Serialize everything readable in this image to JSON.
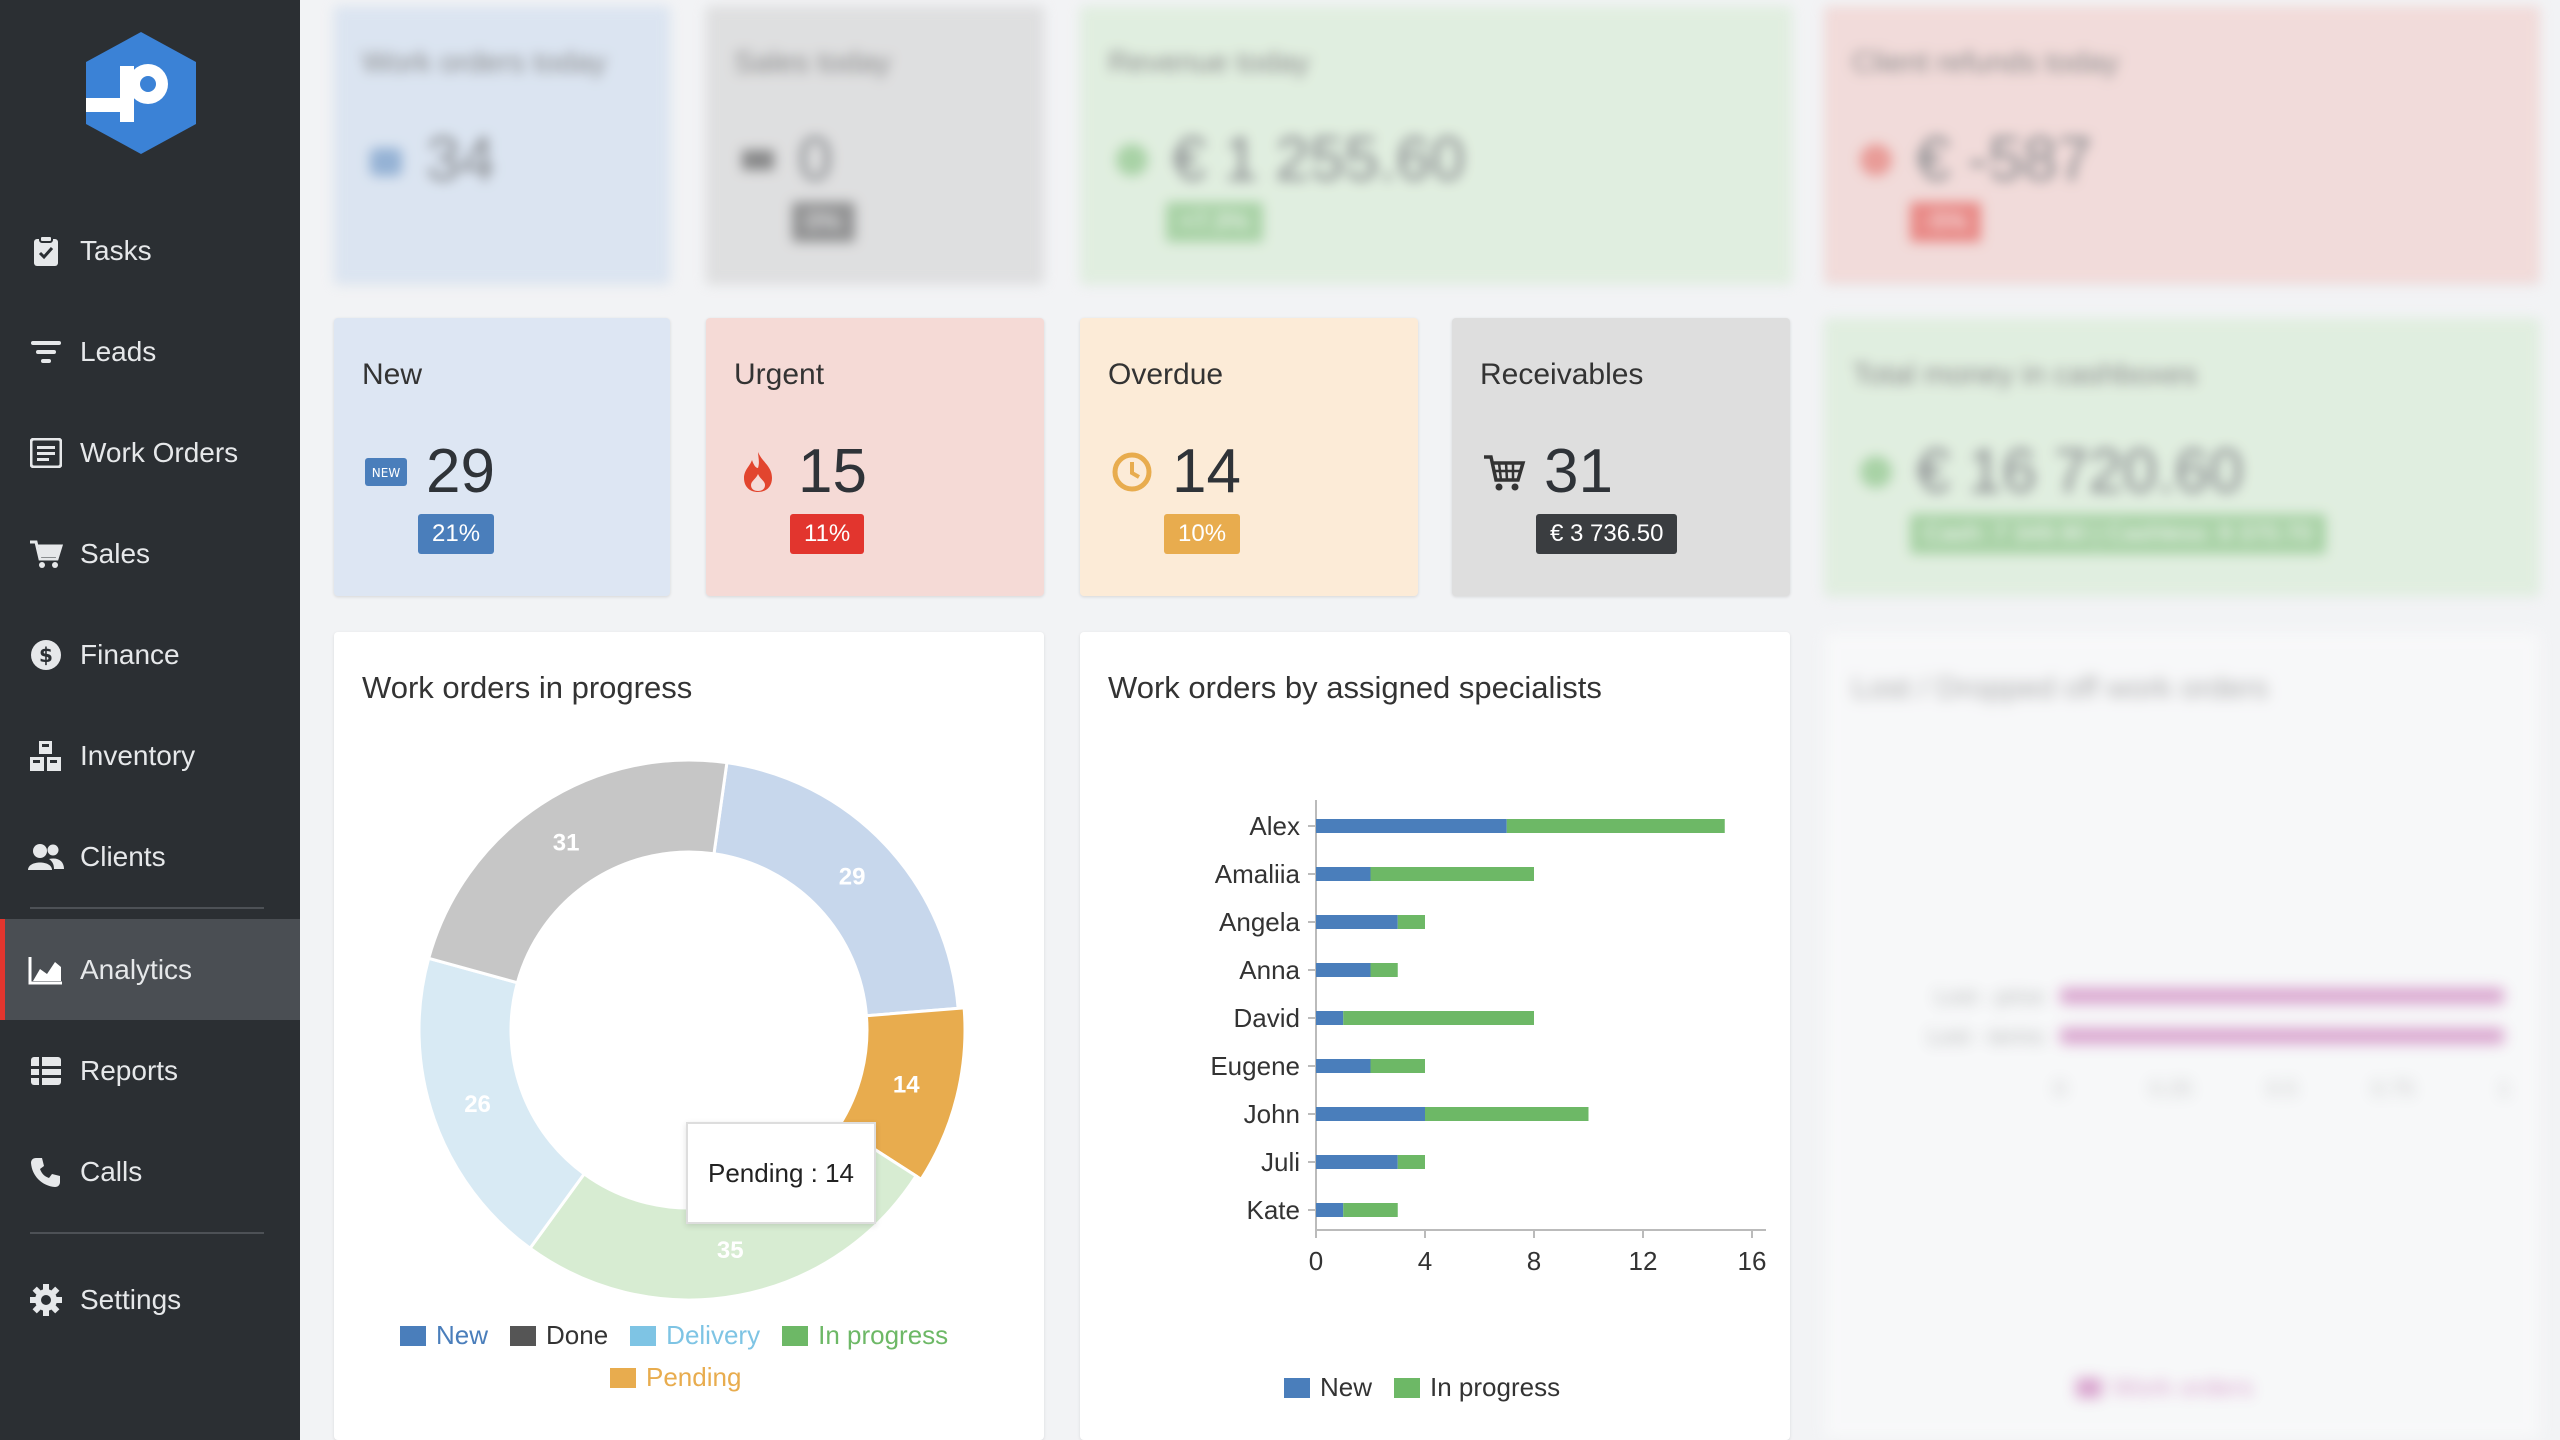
{
  "sidebar": {
    "items": [
      {
        "label": "Tasks",
        "icon": "clipboard-check-icon"
      },
      {
        "label": "Leads",
        "icon": "filter-icon"
      },
      {
        "label": "Work Orders",
        "icon": "work-orders-icon"
      },
      {
        "label": "Sales",
        "icon": "cart-icon"
      },
      {
        "label": "Finance",
        "icon": "dollar-coin-icon"
      },
      {
        "label": "Inventory",
        "icon": "boxes-icon"
      },
      {
        "label": "Clients",
        "icon": "users-icon"
      }
    ],
    "items2": [
      {
        "label": "Analytics",
        "icon": "chart-area-icon",
        "active": true
      },
      {
        "label": "Reports",
        "icon": "list-icon"
      },
      {
        "label": "Calls",
        "icon": "phone-icon"
      }
    ],
    "items3": [
      {
        "label": "Settings",
        "icon": "gear-icon"
      }
    ]
  },
  "top_cards": [
    {
      "title": "Work orders today",
      "value": "34"
    },
    {
      "title": "Sales today",
      "value": "0",
      "badge": "0%"
    },
    {
      "title": "Revenue today",
      "value": "€ 1 255.60",
      "badge": "+7.3%"
    },
    {
      "title": "Client refunds today",
      "value": "€ -587",
      "badge": "-5%"
    }
  ],
  "kpi_cards": [
    {
      "title": "New",
      "value": "29",
      "badge": "21%",
      "icon": "new-tag-icon"
    },
    {
      "title": "Urgent",
      "value": "15",
      "badge": "11%",
      "icon": "fire-icon"
    },
    {
      "title": "Overdue",
      "value": "14",
      "badge": "10%",
      "icon": "clock-icon"
    },
    {
      "title": "Receivables",
      "value": "31",
      "badge": "€ 3 736.50",
      "icon": "cart-icon"
    }
  ],
  "cash_card": {
    "title": "Total money in cashboxes",
    "value": "€ 16 720.60",
    "badge": "Cash: 7 349.90 | Cashless: 9 370.70"
  },
  "colors": {
    "new": "#4a7ebb",
    "done": "#555555",
    "delivery": "#7ec4e4",
    "in_progress": "#6db866",
    "pending": "#e8ac4e",
    "accent_red": "#e2352e"
  },
  "panels": {
    "donut_title": "Work orders in progress",
    "bars_title": "Work orders by assigned specialists",
    "right_title": "Lost / Dropped off work orders",
    "tooltip": "Pending : 14"
  },
  "chart_data": [
    {
      "type": "pie",
      "title": "Work orders in progress",
      "categories": [
        "New",
        "Done",
        "Delivery",
        "In progress",
        "Pending"
      ],
      "values": [
        29,
        31,
        26,
        35,
        14
      ],
      "legend": "bottom"
    },
    {
      "type": "bar",
      "orientation": "horizontal",
      "stacked": true,
      "title": "Work orders by assigned specialists",
      "categories": [
        "Alex",
        "Amaliia",
        "Angela",
        "Anna",
        "David",
        "Eugene",
        "John",
        "Juli",
        "Kate"
      ],
      "series": [
        {
          "name": "New",
          "values": [
            7,
            2,
            3,
            2,
            1,
            2,
            4,
            3,
            1
          ]
        },
        {
          "name": "In progress",
          "values": [
            8,
            6,
            1,
            1,
            7,
            2,
            6,
            1,
            2
          ]
        }
      ],
      "xlim": [
        0,
        16
      ],
      "xticks": [
        "0",
        "4",
        "8",
        "12",
        "16"
      ],
      "legend": "bottom"
    },
    {
      "type": "bar",
      "orientation": "horizontal",
      "title": "Lost / Dropped off work orders",
      "categories": [
        "Lost - price",
        "Lost - terms"
      ],
      "series": [
        {
          "name": "Work orders",
          "values": [
            1,
            1
          ]
        }
      ],
      "xlim": [
        0,
        1
      ],
      "xticks": [
        "0",
        "0.25",
        "0.5",
        "0.75",
        "1"
      ],
      "legend": "bottom"
    }
  ]
}
